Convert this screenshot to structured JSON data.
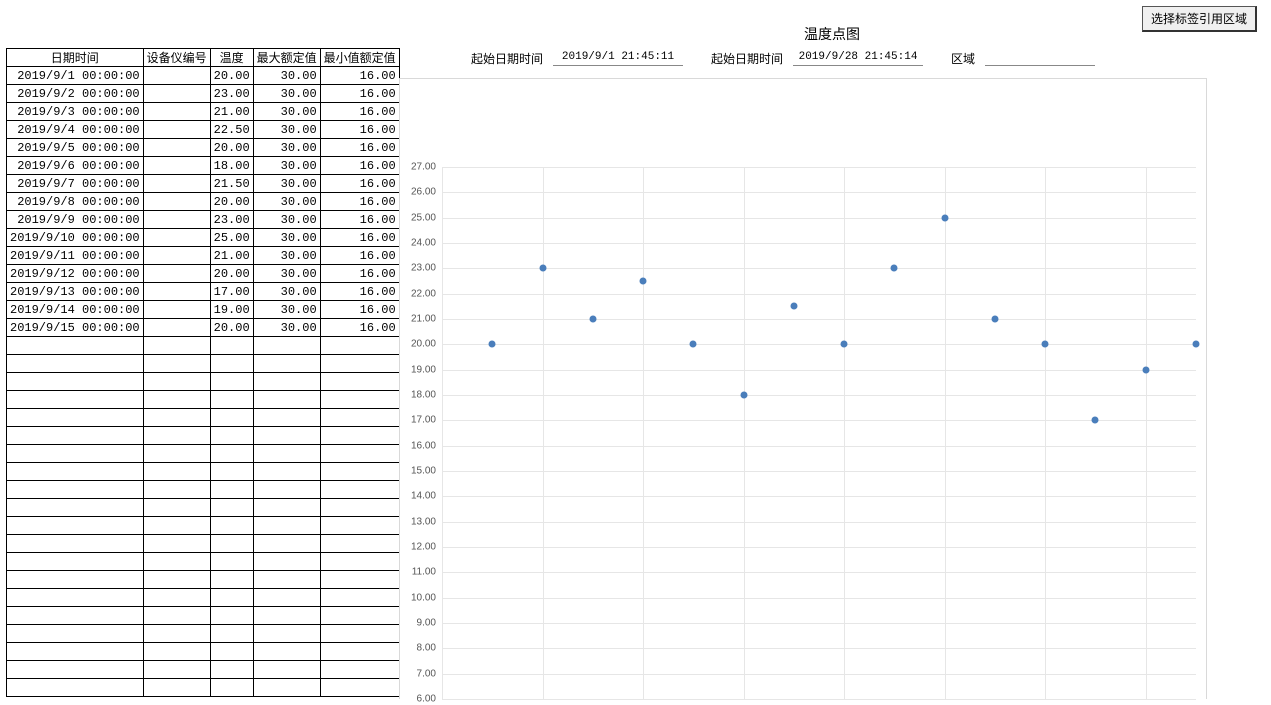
{
  "table": {
    "headers": [
      "日期时间",
      "设备仪编号",
      "温度",
      "最大额定值",
      "最小值额定值"
    ],
    "rows": [
      [
        "2019/9/1 00:00:00",
        "",
        "20.00",
        "30.00",
        "16.00"
      ],
      [
        "2019/9/2 00:00:00",
        "",
        "23.00",
        "30.00",
        "16.00"
      ],
      [
        "2019/9/3 00:00:00",
        "",
        "21.00",
        "30.00",
        "16.00"
      ],
      [
        "2019/9/4 00:00:00",
        "",
        "22.50",
        "30.00",
        "16.00"
      ],
      [
        "2019/9/5 00:00:00",
        "",
        "20.00",
        "30.00",
        "16.00"
      ],
      [
        "2019/9/6 00:00:00",
        "",
        "18.00",
        "30.00",
        "16.00"
      ],
      [
        "2019/9/7 00:00:00",
        "",
        "21.50",
        "30.00",
        "16.00"
      ],
      [
        "2019/9/8 00:00:00",
        "",
        "20.00",
        "30.00",
        "16.00"
      ],
      [
        "2019/9/9 00:00:00",
        "",
        "23.00",
        "30.00",
        "16.00"
      ],
      [
        "2019/9/10 00:00:00",
        "",
        "25.00",
        "30.00",
        "16.00"
      ],
      [
        "2019/9/11 00:00:00",
        "",
        "21.00",
        "30.00",
        "16.00"
      ],
      [
        "2019/9/12 00:00:00",
        "",
        "20.00",
        "30.00",
        "16.00"
      ],
      [
        "2019/9/13 00:00:00",
        "",
        "17.00",
        "30.00",
        "16.00"
      ],
      [
        "2019/9/14 00:00:00",
        "",
        "19.00",
        "30.00",
        "16.00"
      ],
      [
        "2019/9/15 00:00:00",
        "",
        "20.00",
        "30.00",
        "16.00"
      ]
    ],
    "empty_rows": 20
  },
  "top_button": "选择标签引用区域",
  "chart": {
    "title": "温度点图",
    "filters": {
      "start_label": "起始日期时间",
      "start_value": "2019/9/1 21:45:11",
      "end_label": "起始日期时间",
      "end_value": "2019/9/28 21:45:14",
      "area_label": "区域",
      "area_value": ""
    },
    "type": "scatter",
    "y_min": 6.0,
    "y_max": 27.0,
    "y_step": 1.0,
    "x_count": 15,
    "x_grid_step": 2,
    "values": [
      20.0,
      23.0,
      21.0,
      22.5,
      20.0,
      18.0,
      21.5,
      20.0,
      23.0,
      25.0,
      21.0,
      20.0,
      17.0,
      19.0,
      20.0
    ],
    "point_color": "#4a7ebb",
    "grid_color": "#e6e6e6",
    "tick_fontsize": 10
  }
}
